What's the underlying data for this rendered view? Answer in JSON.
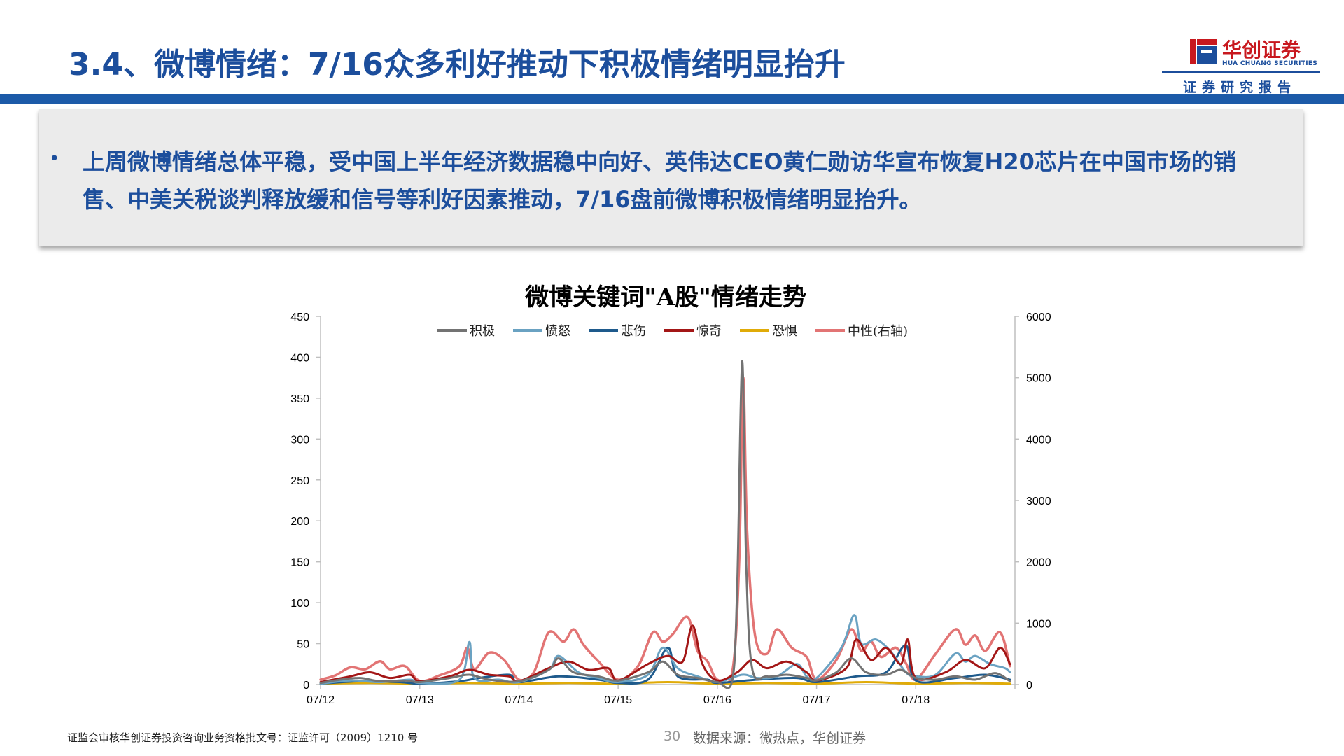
{
  "header": {
    "title": "3.4、微博情绪：7/16众多利好推动下积极情绪明显抬升",
    "brand_name": "华创证券",
    "brand_en": "HUA CHUANG SECURITIES",
    "brand_sub": "证券研究报告",
    "brand_color": "#c8181e",
    "theme_color": "#1c4e9c"
  },
  "summary": {
    "bullet": "•",
    "text": "上周微博情绪总体平稳，受中国上半年经济数据稳中向好、英伟达CEO黄仁勋访华宣布恢复H20芯片在中国市场的销售、中美关税谈判释放缓和信号等利好因素推动，7/16盘前微博积极情绪明显抬升。"
  },
  "chart_data": {
    "type": "line",
    "title": "微博关键词\"A股\"情绪走势",
    "x_ticks": [
      "07/12",
      "07/13",
      "07/14",
      "07/15",
      "07/16",
      "07/17",
      "07/18"
    ],
    "y_left": {
      "range": [
        0,
        450
      ],
      "ticks": [
        0,
        50,
        100,
        150,
        200,
        250,
        300,
        350,
        400,
        450
      ]
    },
    "y_right": {
      "range": [
        0,
        6000
      ],
      "ticks": [
        0,
        1000,
        2000,
        3000,
        4000,
        5000,
        6000
      ]
    },
    "legend_position": "top",
    "grid": false,
    "series": [
      {
        "name": "积极",
        "color": "#737373",
        "axis": "left",
        "points": [
          [
            0.0,
            2
          ],
          [
            0.2,
            6
          ],
          [
            0.4,
            8
          ],
          [
            0.6,
            4
          ],
          [
            0.85,
            5
          ],
          [
            1.0,
            3
          ],
          [
            1.3,
            8
          ],
          [
            1.5,
            12
          ],
          [
            1.7,
            6
          ],
          [
            2.0,
            4
          ],
          [
            2.3,
            18
          ],
          [
            2.4,
            32
          ],
          [
            2.55,
            15
          ],
          [
            2.8,
            10
          ],
          [
            3.0,
            5
          ],
          [
            3.3,
            15
          ],
          [
            3.45,
            28
          ],
          [
            3.6,
            12
          ],
          [
            3.8,
            8
          ],
          [
            4.0,
            3
          ],
          [
            4.15,
            5
          ],
          [
            4.2,
            120
          ],
          [
            4.25,
            395
          ],
          [
            4.29,
            150
          ],
          [
            4.35,
            20
          ],
          [
            4.5,
            10
          ],
          [
            4.7,
            12
          ],
          [
            4.9,
            8
          ],
          [
            5.0,
            5
          ],
          [
            5.2,
            15
          ],
          [
            5.35,
            32
          ],
          [
            5.5,
            15
          ],
          [
            5.7,
            12
          ],
          [
            5.85,
            18
          ],
          [
            6.0,
            8
          ],
          [
            6.2,
            6
          ],
          [
            6.4,
            10
          ],
          [
            6.6,
            6
          ],
          [
            6.8,
            14
          ],
          [
            6.95,
            4
          ]
        ]
      },
      {
        "name": "愤怒",
        "color": "#6aa2c2",
        "axis": "left",
        "points": [
          [
            0.0,
            1
          ],
          [
            0.3,
            5
          ],
          [
            0.6,
            3
          ],
          [
            0.9,
            6
          ],
          [
            1.0,
            2
          ],
          [
            1.4,
            6
          ],
          [
            1.5,
            52
          ],
          [
            1.55,
            8
          ],
          [
            1.8,
            6
          ],
          [
            2.0,
            3
          ],
          [
            2.3,
            18
          ],
          [
            2.4,
            35
          ],
          [
            2.6,
            15
          ],
          [
            2.8,
            8
          ],
          [
            3.0,
            3
          ],
          [
            3.3,
            12
          ],
          [
            3.45,
            45
          ],
          [
            3.6,
            20
          ],
          [
            3.8,
            10
          ],
          [
            4.0,
            3
          ],
          [
            4.25,
            12
          ],
          [
            4.4,
            8
          ],
          [
            4.6,
            10
          ],
          [
            4.8,
            25
          ],
          [
            4.9,
            10
          ],
          [
            5.0,
            8
          ],
          [
            5.25,
            45
          ],
          [
            5.38,
            85
          ],
          [
            5.45,
            50
          ],
          [
            5.6,
            55
          ],
          [
            5.75,
            40
          ],
          [
            5.9,
            15
          ],
          [
            6.0,
            10
          ],
          [
            6.2,
            12
          ],
          [
            6.4,
            38
          ],
          [
            6.5,
            28
          ],
          [
            6.6,
            35
          ],
          [
            6.75,
            25
          ],
          [
            6.9,
            20
          ],
          [
            6.95,
            15
          ]
        ]
      },
      {
        "name": "悲伤",
        "color": "#1e5a8c",
        "axis": "left",
        "points": [
          [
            0.0,
            1
          ],
          [
            0.4,
            4
          ],
          [
            0.8,
            3
          ],
          [
            1.0,
            1
          ],
          [
            1.4,
            4
          ],
          [
            1.6,
            8
          ],
          [
            1.9,
            12
          ],
          [
            2.0,
            3
          ],
          [
            2.4,
            10
          ],
          [
            2.8,
            6
          ],
          [
            3.0,
            2
          ],
          [
            3.3,
            6
          ],
          [
            3.5,
            45
          ],
          [
            3.6,
            10
          ],
          [
            3.9,
            6
          ],
          [
            4.0,
            2
          ],
          [
            4.4,
            6
          ],
          [
            4.8,
            8
          ],
          [
            5.0,
            3
          ],
          [
            5.4,
            10
          ],
          [
            5.7,
            15
          ],
          [
            5.9,
            48
          ],
          [
            6.0,
            5
          ],
          [
            6.4,
            8
          ],
          [
            6.7,
            12
          ],
          [
            6.95,
            6
          ]
        ]
      },
      {
        "name": "惊奇",
        "color": "#a31616",
        "axis": "left",
        "points": [
          [
            0.0,
            3
          ],
          [
            0.3,
            10
          ],
          [
            0.5,
            15
          ],
          [
            0.7,
            8
          ],
          [
            0.9,
            12
          ],
          [
            1.0,
            4
          ],
          [
            1.3,
            10
          ],
          [
            1.5,
            18
          ],
          [
            1.7,
            12
          ],
          [
            1.9,
            10
          ],
          [
            2.0,
            4
          ],
          [
            2.3,
            20
          ],
          [
            2.5,
            28
          ],
          [
            2.7,
            18
          ],
          [
            2.9,
            20
          ],
          [
            3.0,
            5
          ],
          [
            3.3,
            25
          ],
          [
            3.5,
            35
          ],
          [
            3.65,
            28
          ],
          [
            3.75,
            72
          ],
          [
            3.85,
            25
          ],
          [
            4.0,
            5
          ],
          [
            4.2,
            15
          ],
          [
            4.35,
            30
          ],
          [
            4.5,
            20
          ],
          [
            4.7,
            28
          ],
          [
            4.9,
            15
          ],
          [
            5.0,
            5
          ],
          [
            5.3,
            20
          ],
          [
            5.4,
            55
          ],
          [
            5.55,
            30
          ],
          [
            5.7,
            45
          ],
          [
            5.85,
            25
          ],
          [
            5.92,
            55
          ],
          [
            6.0,
            8
          ],
          [
            6.3,
            15
          ],
          [
            6.5,
            30
          ],
          [
            6.7,
            20
          ],
          [
            6.85,
            45
          ],
          [
            6.95,
            25
          ]
        ]
      },
      {
        "name": "恐惧",
        "color": "#e0ab08",
        "axis": "left",
        "points": [
          [
            0.0,
            1
          ],
          [
            0.5,
            2
          ],
          [
            1.0,
            1
          ],
          [
            1.5,
            2
          ],
          [
            2.0,
            1
          ],
          [
            2.5,
            2
          ],
          [
            3.0,
            1
          ],
          [
            3.5,
            3
          ],
          [
            4.0,
            1
          ],
          [
            4.5,
            2
          ],
          [
            5.0,
            1
          ],
          [
            5.5,
            3
          ],
          [
            6.0,
            1
          ],
          [
            6.5,
            2
          ],
          [
            6.95,
            1
          ]
        ]
      },
      {
        "name": "中性(右轴)",
        "color": "#e27474",
        "axis": "right",
        "points": [
          [
            0.0,
            80
          ],
          [
            0.15,
            150
          ],
          [
            0.3,
            280
          ],
          [
            0.45,
            250
          ],
          [
            0.6,
            380
          ],
          [
            0.7,
            250
          ],
          [
            0.85,
            300
          ],
          [
            1.0,
            60
          ],
          [
            1.2,
            150
          ],
          [
            1.4,
            300
          ],
          [
            1.48,
            600
          ],
          [
            1.55,
            250
          ],
          [
            1.7,
            520
          ],
          [
            1.85,
            400
          ],
          [
            2.0,
            80
          ],
          [
            2.15,
            200
          ],
          [
            2.3,
            850
          ],
          [
            2.45,
            700
          ],
          [
            2.55,
            900
          ],
          [
            2.65,
            650
          ],
          [
            2.8,
            380
          ],
          [
            3.0,
            80
          ],
          [
            3.2,
            300
          ],
          [
            3.35,
            850
          ],
          [
            3.45,
            700
          ],
          [
            3.55,
            820
          ],
          [
            3.7,
            1100
          ],
          [
            3.8,
            550
          ],
          [
            3.9,
            380
          ],
          [
            4.0,
            80
          ],
          [
            4.15,
            200
          ],
          [
            4.22,
            2000
          ],
          [
            4.26,
            5000
          ],
          [
            4.3,
            2500
          ],
          [
            4.38,
            800
          ],
          [
            4.5,
            500
          ],
          [
            4.6,
            900
          ],
          [
            4.75,
            600
          ],
          [
            4.9,
            450
          ],
          [
            5.0,
            80
          ],
          [
            5.2,
            400
          ],
          [
            5.35,
            900
          ],
          [
            5.45,
            550
          ],
          [
            5.55,
            700
          ],
          [
            5.65,
            450
          ],
          [
            5.8,
            600
          ],
          [
            5.9,
            350
          ],
          [
            6.0,
            80
          ],
          [
            6.2,
            500
          ],
          [
            6.4,
            900
          ],
          [
            6.5,
            650
          ],
          [
            6.6,
            800
          ],
          [
            6.7,
            550
          ],
          [
            6.85,
            850
          ],
          [
            6.95,
            300
          ]
        ]
      }
    ]
  },
  "footer": {
    "license": "证监会审核华创证券投资咨询业务资格批文号：证监许可（2009）1210 号",
    "page": "30",
    "source": "数据来源：微热点，华创证券"
  }
}
